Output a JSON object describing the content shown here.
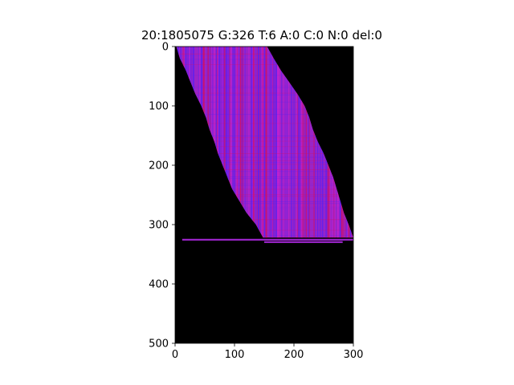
{
  "chart_data": {
    "type": "heatmap",
    "title": "20:1805075  G:326 T:6 A:0 C:0 N:0 del:0",
    "xlabel": "",
    "ylabel": "",
    "xlim": [
      0,
      300
    ],
    "ylim": [
      500,
      0
    ],
    "x_ticks": [
      0,
      100,
      200,
      300
    ],
    "y_ticks": [
      0,
      100,
      200,
      300,
      400,
      500
    ],
    "background_color": "#000000",
    "colors": {
      "base": "#9a24c8",
      "red": "#d01060",
      "blue": "#5a20f0",
      "magenta": "#d020d0"
    },
    "band": {
      "rows": [
        0,
        322
      ],
      "left_edge": [
        [
          0,
          2
        ],
        [
          20,
          8
        ],
        [
          40,
          18
        ],
        [
          60,
          26
        ],
        [
          80,
          34
        ],
        [
          100,
          44
        ],
        [
          120,
          52
        ],
        [
          140,
          58
        ],
        [
          160,
          66
        ],
        [
          180,
          72
        ],
        [
          200,
          80
        ],
        [
          220,
          88
        ],
        [
          240,
          96
        ],
        [
          260,
          108
        ],
        [
          280,
          120
        ],
        [
          300,
          136
        ],
        [
          322,
          148
        ]
      ],
      "right_edge": [
        [
          0,
          155
        ],
        [
          20,
          166
        ],
        [
          40,
          178
        ],
        [
          60,
          192
        ],
        [
          80,
          206
        ],
        [
          100,
          218
        ],
        [
          120,
          226
        ],
        [
          140,
          232
        ],
        [
          160,
          240
        ],
        [
          180,
          250
        ],
        [
          200,
          258
        ],
        [
          220,
          266
        ],
        [
          240,
          272
        ],
        [
          260,
          278
        ],
        [
          280,
          284
        ],
        [
          300,
          292
        ],
        [
          322,
          300
        ]
      ]
    },
    "horizontal_reads": [
      {
        "row": 324,
        "x_start": 12,
        "x_end": 300,
        "height": 3
      },
      {
        "row": 328,
        "x_start": 150,
        "x_end": 282,
        "height": 3
      }
    ]
  }
}
